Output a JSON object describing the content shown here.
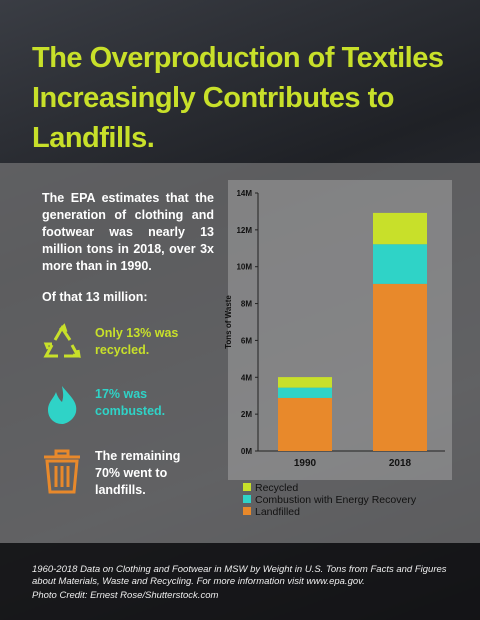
{
  "title": "The Overproduction of Textiles Increasingly Contributes to Landfills.",
  "intro": "The EPA estimates that the generation of clothing and footwear was nearly 13 million tons in 2018, over 3x more than in 1990.",
  "subhead": "Of that 13 million:",
  "facts": [
    "Only 13% was recycled.",
    "17% was combusted.",
    "The remaining 70% went to landfills."
  ],
  "footer": {
    "source": "1960-2018 Data on Clothing and Footwear in MSW by Weight in U.S. Tons from Facts and Figures about Materials, Waste and Recycling. For more information visit www.epa.gov.",
    "credit": "Photo Credit: Ernest Rose/Shutterstock.com"
  },
  "chart_data": {
    "type": "stacked-bar",
    "y_label": "Tons of Waste",
    "categories": [
      "1990",
      "2018"
    ],
    "series": [
      {
        "name": "Recycled",
        "color": "#c8e02a",
        "values": [
          0.57,
          1.7
        ]
      },
      {
        "name": "Combustion with Energy Recovery",
        "color": "#2fd3c7",
        "values": [
          0.56,
          2.15
        ]
      },
      {
        "name": "Landfilled",
        "color": "#e8892b",
        "values": [
          2.88,
          9.07
        ]
      }
    ],
    "ylim": [
      0,
      14
    ],
    "yticks": [
      {
        "value": 0,
        "label": "0M"
      },
      {
        "value": 2,
        "label": "2M"
      },
      {
        "value": 4,
        "label": "4M"
      },
      {
        "value": 6,
        "label": "6M"
      },
      {
        "value": 8,
        "label": "8M"
      },
      {
        "value": 10,
        "label": "10M"
      },
      {
        "value": 12,
        "label": "12M"
      },
      {
        "value": 14,
        "label": "14M"
      }
    ]
  }
}
